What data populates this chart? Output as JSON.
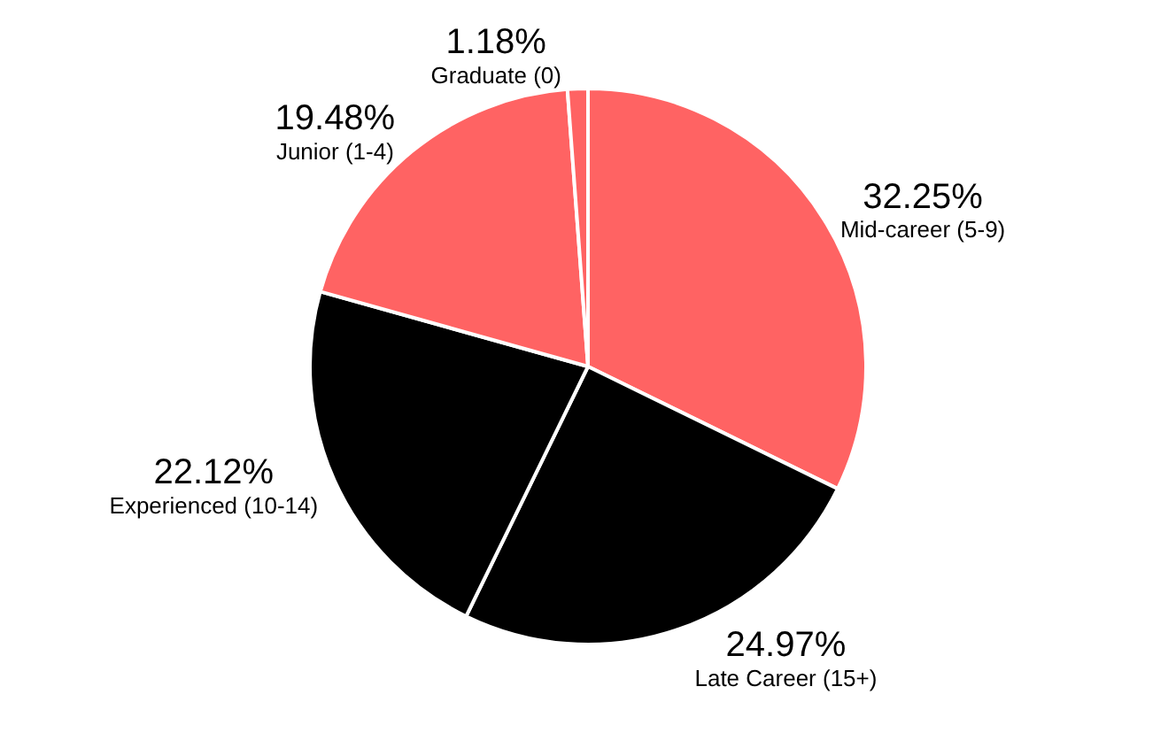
{
  "chart_data": {
    "type": "pie",
    "categories": [
      "Mid-career (5-9)",
      "Late Career (15+)",
      "Experienced (10-14)",
      "Junior (1-4)",
      "Graduate (0)"
    ],
    "values": [
      32.25,
      24.97,
      22.12,
      19.48,
      1.18
    ],
    "value_labels": [
      "32.25%",
      "24.97%",
      "22.12%",
      "19.48%",
      "1.18%"
    ],
    "colors": [
      "#ff6363",
      "#000000",
      "#000000",
      "#ff6363",
      "#ff6363"
    ],
    "legend": false
  }
}
